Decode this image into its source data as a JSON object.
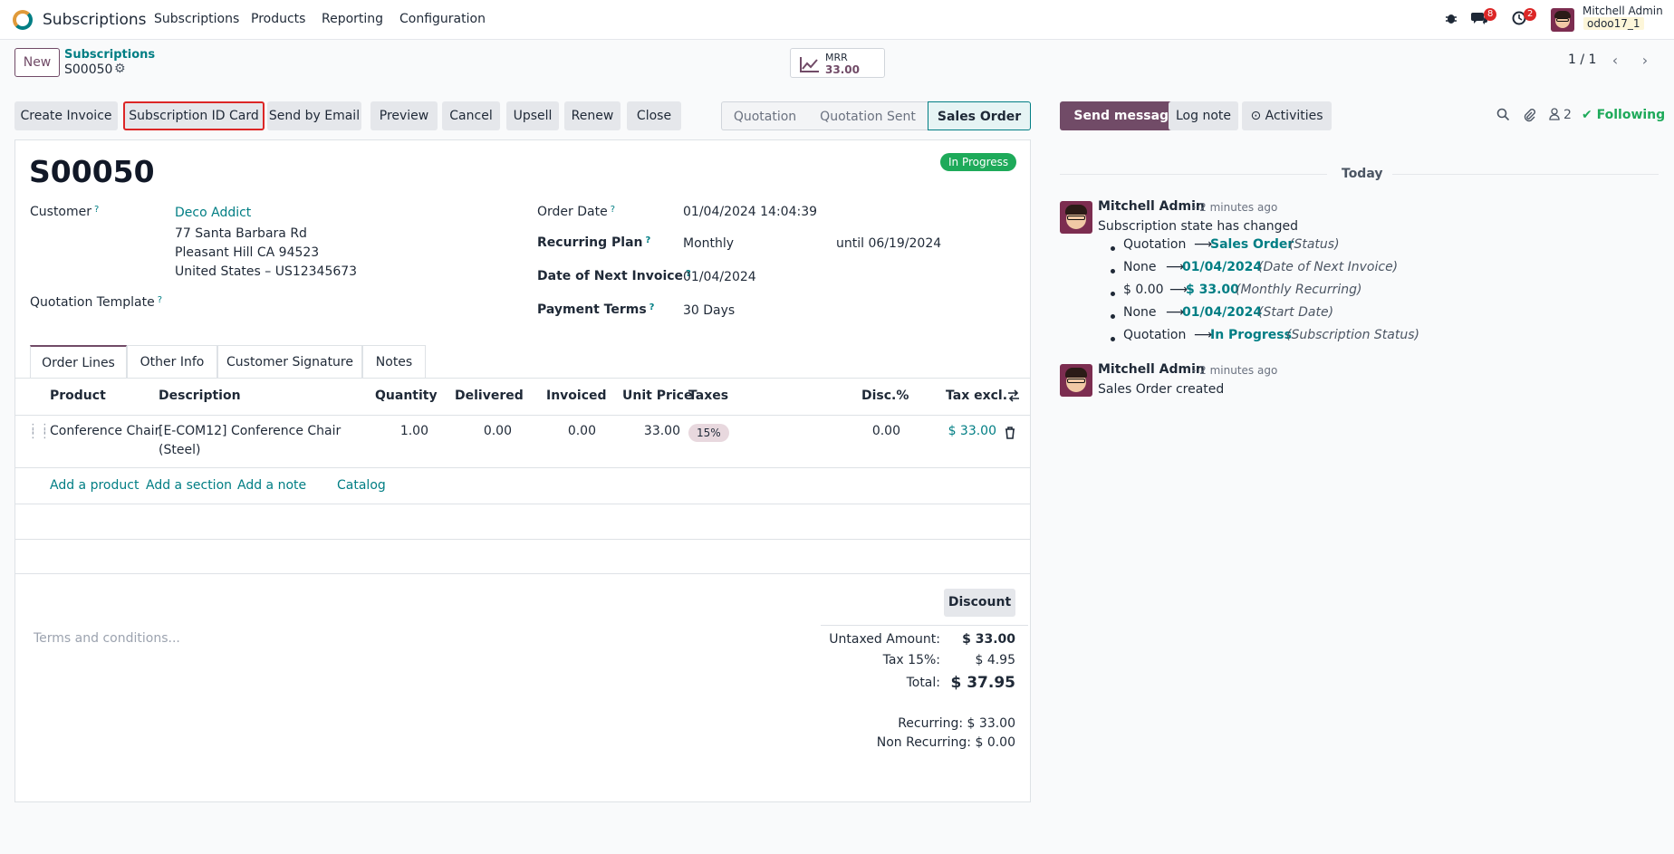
{
  "navbar": {
    "app_name": "Subscriptions",
    "menus": [
      "Subscriptions",
      "Products",
      "Reporting",
      "Configuration"
    ],
    "messages_count": "8",
    "activities_count": "2",
    "user_name": "Mitchell Admin",
    "db_name": "odoo17_1"
  },
  "control_panel": {
    "new_label": "New",
    "breadcrumb_parent": "Subscriptions",
    "breadcrumb_current": "S00050",
    "mrr_label": "MRR",
    "mrr_value": "33.00",
    "pager": "1 / 1"
  },
  "form_buttons": [
    "Create Invoice",
    "Subscription ID Card",
    "Send by Email",
    "Preview",
    "Cancel",
    "Upsell",
    "Renew",
    "Close"
  ],
  "status_bar": [
    "Quotation",
    "Quotation Sent",
    "Sales Order"
  ],
  "record": {
    "name": "S00050",
    "state": "In Progress",
    "customer_label": "Customer",
    "customer_name": "Deco Addict",
    "address_line1": "77 Santa Barbara Rd",
    "address_line2": "Pleasant Hill CA 94523",
    "address_line3": "United States – US12345673",
    "quotation_template_label": "Quotation Template",
    "order_date_label": "Order Date",
    "order_date": "01/04/2024 14:04:39",
    "recurring_plan_label": "Recurring Plan",
    "recurring_plan": "Monthly",
    "recurring_until": "until 06/19/2024",
    "next_invoice_label": "Date of Next Invoice",
    "next_invoice": "01/04/2024",
    "payment_terms_label": "Payment Terms",
    "payment_terms": "30 Days"
  },
  "tabs": [
    "Order Lines",
    "Other Info",
    "Customer Signature",
    "Notes"
  ],
  "lines": {
    "headers": [
      "Product",
      "Description",
      "Quantity",
      "Delivered",
      "Invoiced",
      "Unit Price",
      "Taxes",
      "Disc.%",
      "Tax excl."
    ],
    "rows": [
      {
        "product": "Conference Chair",
        "description_1": "[E-COM12] Conference Chair",
        "description_2": "(Steel)",
        "quantity": "1.00",
        "delivered": "0.00",
        "invoiced": "0.00",
        "unit_price": "33.00",
        "taxes": "15%",
        "discount": "0.00",
        "subtotal": "$ 33.00"
      }
    ],
    "add_links": [
      "Add a product",
      "Add a section",
      "Add a note",
      "Catalog"
    ]
  },
  "totals": {
    "discount_label": "Discount",
    "terms_placeholder": "Terms and conditions...",
    "untaxed_label": "Untaxed Amount:",
    "untaxed": "$ 33.00",
    "tax_label": "Tax 15%:",
    "tax": "$ 4.95",
    "total_label": "Total:",
    "total": "$ 37.95",
    "recurring": "Recurring: $ 33.00",
    "non_recurring": "Non Recurring: $ 0.00"
  },
  "chatter": {
    "send_message": "Send message",
    "log_note": "Log note",
    "activities": "Activities",
    "followers_count": "2",
    "following": "Following",
    "today": "Today",
    "messages": [
      {
        "author": "Mitchell Admin",
        "time": "- 2 minutes ago",
        "body": "Subscription state has changed",
        "tracking": [
          {
            "old": "Quotation",
            "new": "Sales Order",
            "field": "(Status)"
          },
          {
            "old": "None",
            "new": "01/04/2024",
            "field": "(Date of Next Invoice)"
          },
          {
            "old": "$ 0.00",
            "new": "$ 33.00",
            "field": "(Monthly Recurring)"
          },
          {
            "old": "None",
            "new": "01/04/2024",
            "field": "(Start Date)"
          },
          {
            "old": "Quotation",
            "new": "In Progress",
            "field": "(Subscription Status)"
          }
        ]
      },
      {
        "author": "Mitchell Admin",
        "time": "- 2 minutes ago",
        "body": "Sales Order created"
      }
    ]
  },
  "colors": {
    "brand": "#714b67",
    "link": "#017e84",
    "success": "#1eaa5a",
    "highlight_border": "#dc2626"
  }
}
